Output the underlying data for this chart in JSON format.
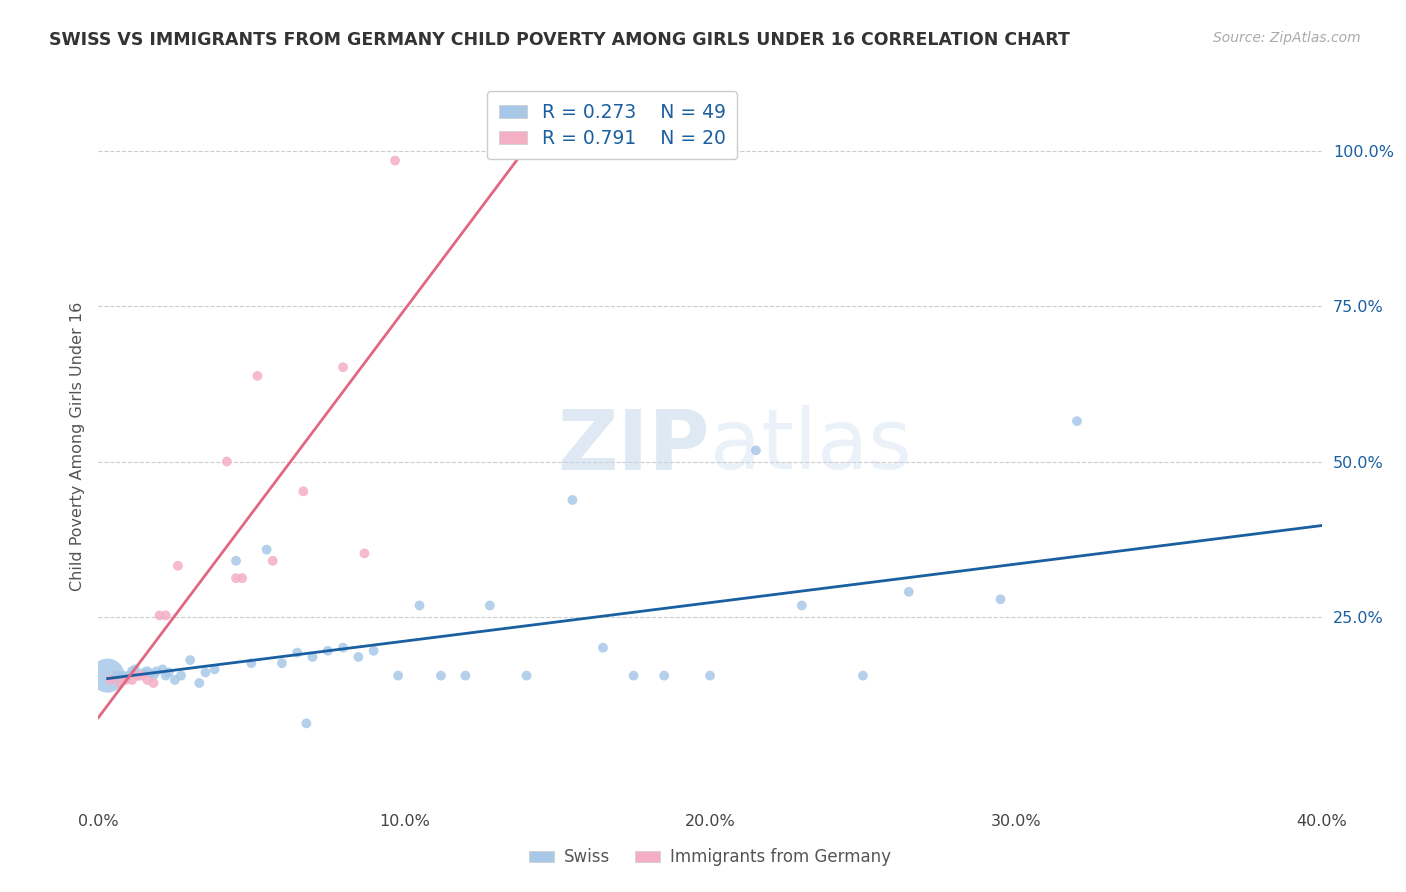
{
  "title": "SWISS VS IMMIGRANTS FROM GERMANY CHILD POVERTY AMONG GIRLS UNDER 16 CORRELATION CHART",
  "source": "Source: ZipAtlas.com",
  "ylabel": "Child Poverty Among Girls Under 16",
  "xlim": [
    0.0,
    0.4
  ],
  "ylim": [
    -0.05,
    1.1
  ],
  "xtick_labels": [
    "0.0%",
    "10.0%",
    "20.0%",
    "30.0%",
    "40.0%"
  ],
  "xtick_vals": [
    0.0,
    0.1,
    0.2,
    0.3,
    0.4
  ],
  "ytick_labels": [
    "100.0%",
    "75.0%",
    "50.0%",
    "25.0%"
  ],
  "ytick_vals": [
    1.0,
    0.75,
    0.5,
    0.25
  ],
  "swiss_R": "0.273",
  "swiss_N": "49",
  "germany_R": "0.791",
  "germany_N": "20",
  "swiss_color": "#a8c8e8",
  "germany_color": "#f4afc5",
  "swiss_line_color": "#1a5fa0",
  "germany_line_color": "#e06882",
  "watermark_color": "#cddff0",
  "swiss_x": [
    0.003,
    0.006,
    0.008,
    0.01,
    0.011,
    0.012,
    0.013,
    0.015,
    0.016,
    0.017,
    0.018,
    0.019,
    0.021,
    0.022,
    0.023,
    0.025,
    0.027,
    0.03,
    0.033,
    0.035,
    0.038,
    0.045,
    0.05,
    0.055,
    0.06,
    0.065,
    0.068,
    0.07,
    0.075,
    0.08,
    0.085,
    0.09,
    0.098,
    0.105,
    0.112,
    0.12,
    0.128,
    0.14,
    0.155,
    0.165,
    0.175,
    0.185,
    0.2,
    0.215,
    0.23,
    0.25,
    0.265,
    0.295,
    0.32
  ],
  "swiss_y": [
    0.155,
    0.155,
    0.155,
    0.155,
    0.162,
    0.165,
    0.155,
    0.16,
    0.162,
    0.158,
    0.155,
    0.162,
    0.165,
    0.155,
    0.16,
    0.148,
    0.155,
    0.18,
    0.143,
    0.16,
    0.165,
    0.34,
    0.175,
    0.358,
    0.175,
    0.192,
    0.078,
    0.185,
    0.195,
    0.2,
    0.185,
    0.195,
    0.155,
    0.268,
    0.155,
    0.155,
    0.268,
    0.155,
    0.438,
    0.2,
    0.155,
    0.155,
    0.155,
    0.518,
    0.268,
    0.155,
    0.29,
    0.278,
    0.565
  ],
  "swiss_size": [
    600,
    50,
    50,
    50,
    50,
    50,
    50,
    50,
    50,
    50,
    50,
    50,
    50,
    50,
    50,
    50,
    50,
    50,
    50,
    50,
    50,
    50,
    50,
    50,
    50,
    50,
    50,
    50,
    50,
    50,
    50,
    50,
    50,
    50,
    50,
    50,
    50,
    50,
    50,
    50,
    50,
    50,
    50,
    50,
    50,
    50,
    50,
    50,
    50
  ],
  "germany_x": [
    0.004,
    0.007,
    0.009,
    0.011,
    0.013,
    0.014,
    0.016,
    0.018,
    0.02,
    0.022,
    0.026,
    0.042,
    0.045,
    0.047,
    0.052,
    0.057,
    0.067,
    0.08,
    0.087,
    0.097
  ],
  "germany_y": [
    0.148,
    0.143,
    0.148,
    0.148,
    0.155,
    0.155,
    0.148,
    0.143,
    0.252,
    0.252,
    0.332,
    0.5,
    0.312,
    0.312,
    0.638,
    0.34,
    0.452,
    0.652,
    0.352,
    0.985
  ],
  "germany_size": [
    50,
    50,
    50,
    50,
    50,
    50,
    50,
    50,
    50,
    50,
    50,
    50,
    50,
    50,
    50,
    50,
    50,
    50,
    50,
    50
  ],
  "swiss_line_x": [
    0.003,
    0.4
  ],
  "germany_line_x": [
    0.004,
    0.097
  ]
}
